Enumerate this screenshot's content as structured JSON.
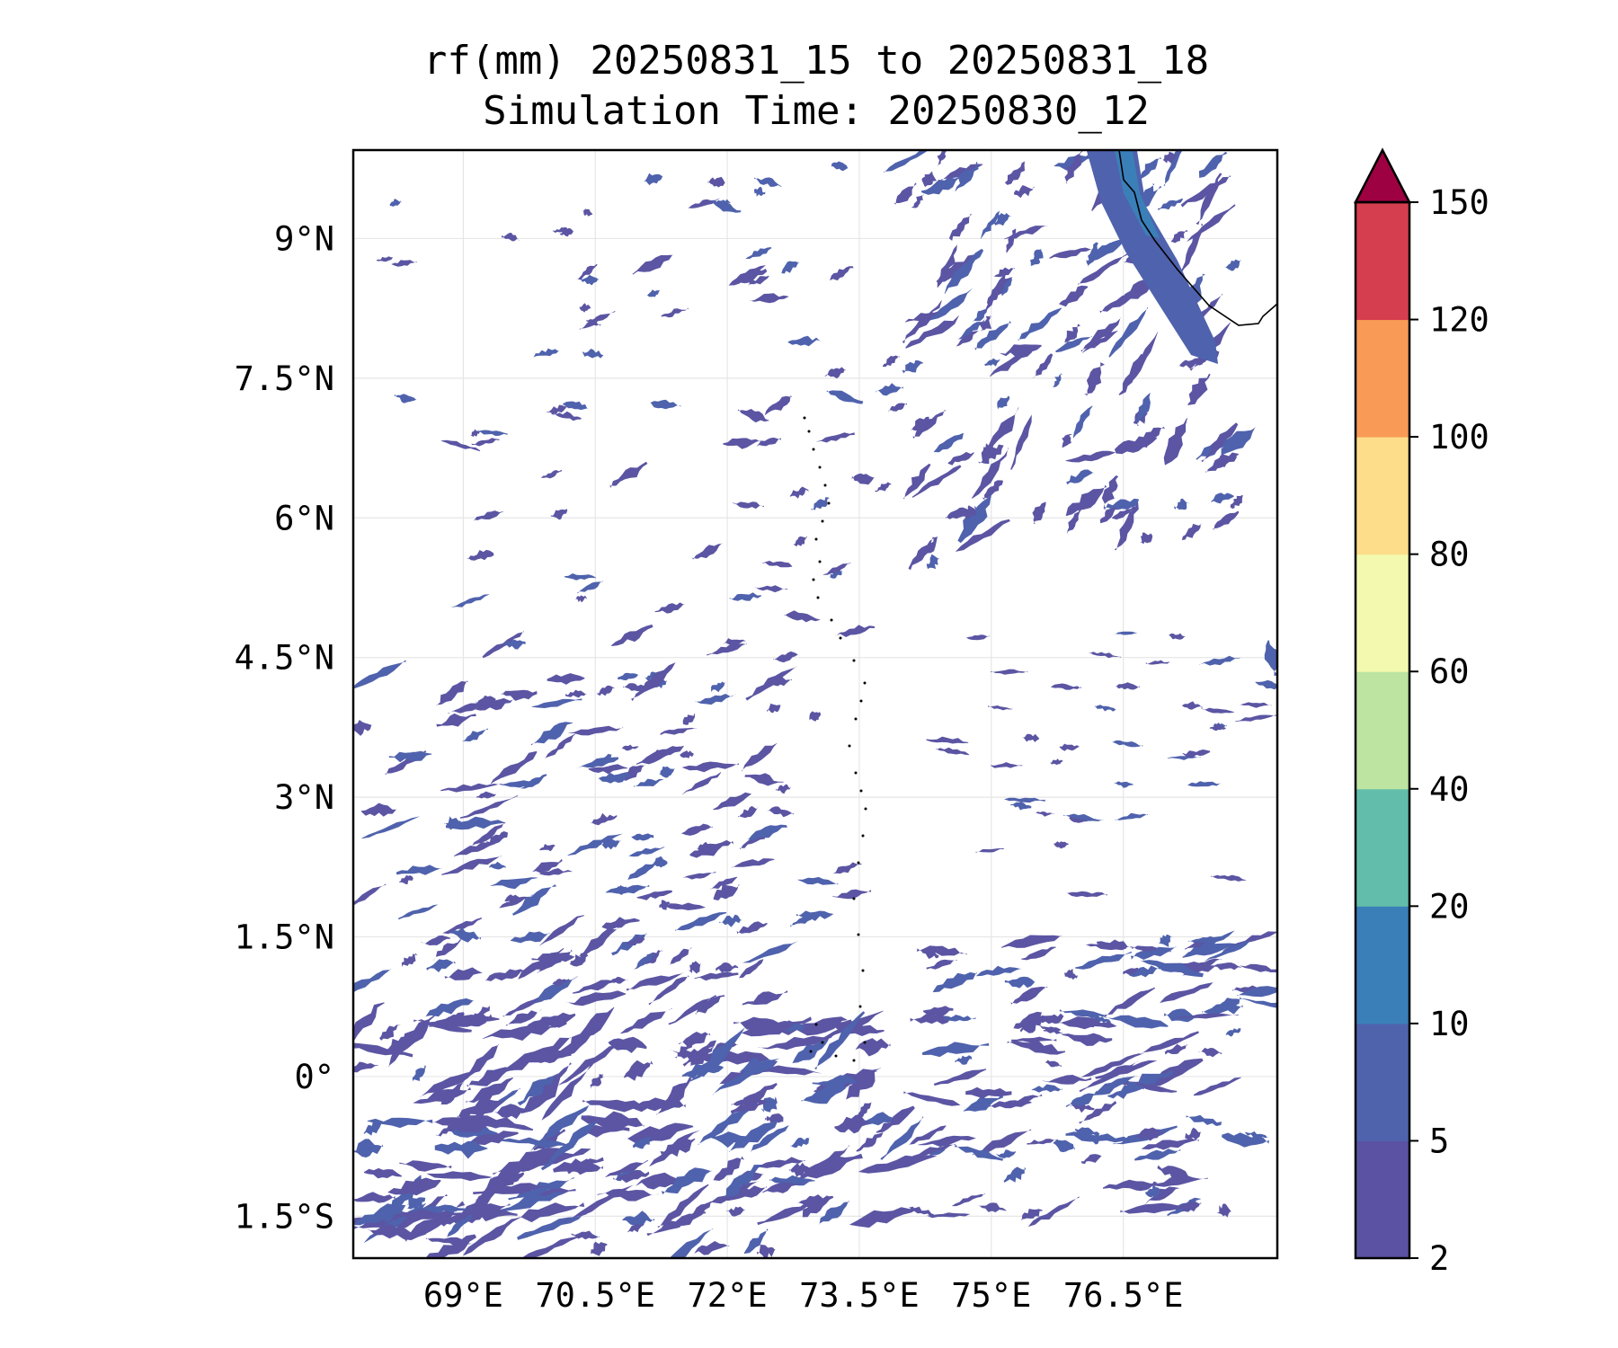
{
  "title": {
    "line1": "rf(mm) 20250831_15 to 20250831_18",
    "line2": "Simulation Time: 20250830_12"
  },
  "map": {
    "lon_range": [
      67.75,
      78.25
    ],
    "lat_range": [
      -1.95,
      9.95
    ],
    "lon_ticks": [
      69,
      70.5,
      72,
      73.5,
      75,
      76.5
    ],
    "lon_tick_labels": [
      "69°E",
      "70.5°E",
      "72°E",
      "73.5°E",
      "75°E",
      "76.5°E"
    ],
    "lat_ticks": [
      9,
      7.5,
      6,
      4.5,
      3,
      1.5,
      0,
      -1.5
    ],
    "lat_tick_labels": [
      "9°N",
      "7.5°N",
      "6°N",
      "4.5°N",
      "3°N",
      "1.5°N",
      "0°",
      "1.5°S"
    ],
    "grid": true,
    "rain_fill_color": "#5b55a3",
    "rain_fill_color_2": "#4f62ad",
    "coast_color": "#000000"
  },
  "colorbar": {
    "levels": [
      2,
      5,
      10,
      20,
      40,
      60,
      80,
      100,
      120,
      150
    ],
    "level_labels": [
      "2",
      "5",
      "10",
      "20",
      "40",
      "60",
      "80",
      "100",
      "120",
      "150"
    ],
    "colors": [
      "#5b52a3",
      "#4f63ad",
      "#3b7fb9",
      "#62bdaa",
      "#bde4a1",
      "#f3f9ae",
      "#fddd8a",
      "#f99a56",
      "#d53e4f"
    ],
    "extend_color": "#9e0142",
    "extend": "max"
  }
}
